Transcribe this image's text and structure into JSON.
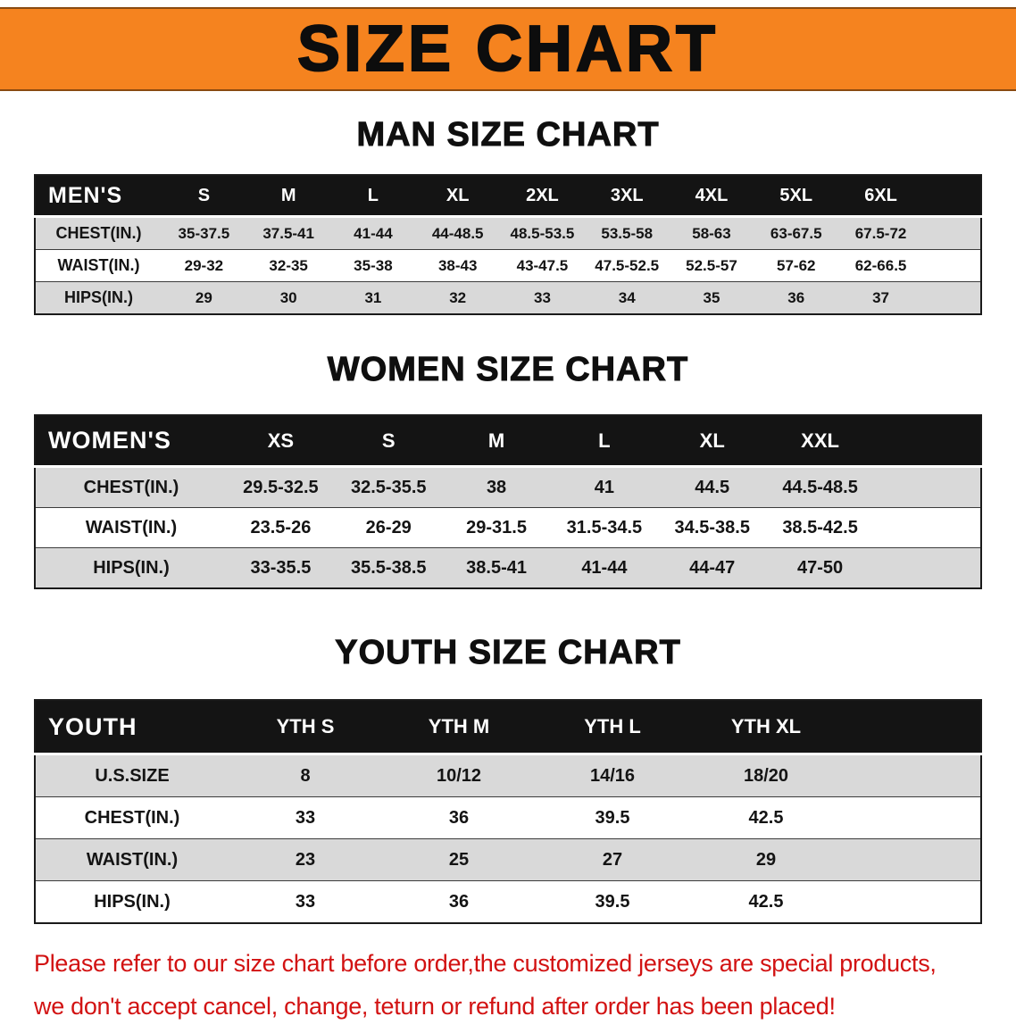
{
  "banner": {
    "title": "SIZE CHART"
  },
  "colors": {
    "banner_bg": "#f5831f",
    "header_bg": "#141414",
    "row_gray": "#d9d9d9",
    "footer_red": "#d21212"
  },
  "sections": [
    {
      "heading": "MAN SIZE CHART",
      "table": {
        "label": "MEN'S",
        "columns": [
          "S",
          "M",
          "L",
          "XL",
          "2XL",
          "3XL",
          "4XL",
          "5XL",
          "6XL"
        ],
        "rows": [
          {
            "label": "CHEST(IN.)",
            "values": [
              "35-37.5",
              "37.5-41",
              "41-44",
              "44-48.5",
              "48.5-53.5",
              "53.5-58",
              "58-63",
              "63-67.5",
              "67.5-72"
            ]
          },
          {
            "label": "WAIST(IN.)",
            "values": [
              "29-32",
              "32-35",
              "35-38",
              "38-43",
              "43-47.5",
              "47.5-52.5",
              "52.5-57",
              "57-62",
              "62-66.5"
            ]
          },
          {
            "label": "HIPS(IN.)",
            "values": [
              "29",
              "30",
              "31",
              "32",
              "33",
              "34",
              "35",
              "36",
              "37"
            ]
          }
        ]
      }
    },
    {
      "heading": "WOMEN SIZE CHART",
      "table": {
        "label": "WOMEN'S",
        "columns": [
          "XS",
          "S",
          "M",
          "L",
          "XL",
          "XXL"
        ],
        "rows": [
          {
            "label": "CHEST(IN.)",
            "values": [
              "29.5-32.5",
              "32.5-35.5",
              "38",
              "41",
              "44.5",
              "44.5-48.5"
            ]
          },
          {
            "label": "WAIST(IN.)",
            "values": [
              "23.5-26",
              "26-29",
              "29-31.5",
              "31.5-34.5",
              "34.5-38.5",
              "38.5-42.5"
            ]
          },
          {
            "label": "HIPS(IN.)",
            "values": [
              "33-35.5",
              "35.5-38.5",
              "38.5-41",
              "41-44",
              "44-47",
              "47-50"
            ]
          }
        ]
      }
    },
    {
      "heading": "YOUTH SIZE CHART",
      "table": {
        "label": "YOUTH",
        "columns": [
          "YTH S",
          "YTH M",
          "YTH L",
          "YTH XL"
        ],
        "rows": [
          {
            "label": "U.S.SIZE",
            "values": [
              "8",
              "10/12",
              "14/16",
              "18/20"
            ]
          },
          {
            "label": "CHEST(IN.)",
            "values": [
              "33",
              "36",
              "39.5",
              "42.5"
            ]
          },
          {
            "label": "WAIST(IN.)",
            "values": [
              "23",
              "25",
              "27",
              "29"
            ]
          },
          {
            "label": "HIPS(IN.)",
            "values": [
              "33",
              "36",
              "39.5",
              "42.5"
            ]
          }
        ]
      }
    }
  ],
  "footer": {
    "line1": "Please refer to our size chart before order,the customized jerseys are special products,",
    "line2": "we don't accept cancel, change, teturn or refund after order has been placed!"
  }
}
